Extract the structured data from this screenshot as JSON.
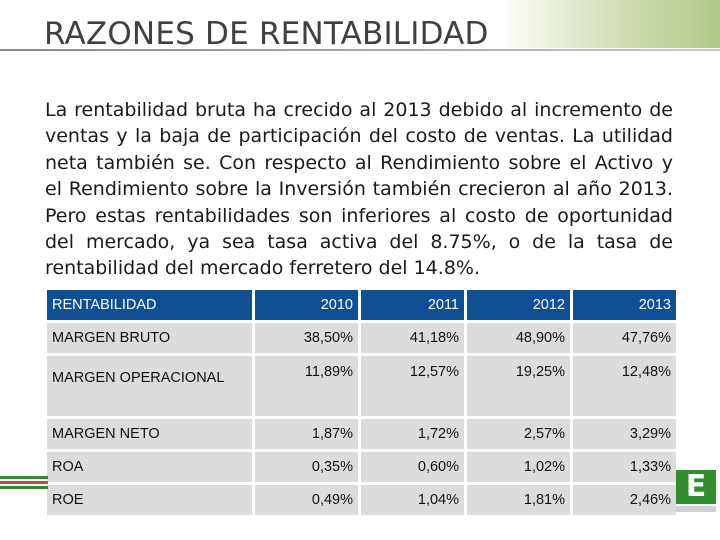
{
  "slide": {
    "title": "RAZONES DE RENTABILIDAD",
    "paragraph": "La rentabilidad bruta ha crecido al 2013 debido al incremento de ventas y la baja de participación del costo de ventas. La utilidad neta también se. Con respecto al Rendimiento sobre el Activo y el Rendimiento sobre la Inversión también crecieron al año 2013. Pero estas rentabilidades son inferiores al costo de oportunidad del mercado, ya sea tasa activa del 8.75%, o de la tasa de rentabilidad del mercado ferretero del 14.8%."
  },
  "table": {
    "headers": [
      "RENTABILIDAD",
      "2010",
      "2011",
      "2012",
      "2013"
    ],
    "rows": [
      {
        "label": "MARGEN BRUTO",
        "values": [
          "38,50%",
          "41,18%",
          "48,90%",
          "47,76%"
        ]
      },
      {
        "label": "MARGEN OPERACIONAL",
        "values": [
          "11,89%",
          "12,57%",
          "19,25%",
          "12,48%"
        ]
      },
      {
        "label": "MARGEN NETO",
        "values": [
          "1,87%",
          "1,72%",
          "2,57%",
          "3,29%"
        ]
      },
      {
        "label": "ROA",
        "values": [
          "0,35%",
          "0,60%",
          "1,02%",
          "1,33%"
        ]
      },
      {
        "label": "ROE",
        "values": [
          "0,49%",
          "1,04%",
          "1,81%",
          "2,46%"
        ]
      }
    ]
  },
  "logo": {
    "letter": "E"
  },
  "colors": {
    "header_bg": "#0f4f96",
    "row_bg": "#dcdcdc",
    "logo_green": "#2f8f2f"
  }
}
